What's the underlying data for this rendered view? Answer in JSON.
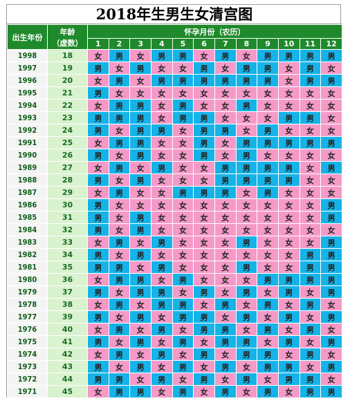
{
  "title": "2018年生男生女清宫图",
  "headers": {
    "birth_year": "出生年份",
    "age_line1": "年龄",
    "age_line2": "（虚数）",
    "month_group": "怀孕月份（农历）",
    "months": [
      "1",
      "2",
      "3",
      "4",
      "5",
      "6",
      "7",
      "8",
      "9",
      "10",
      "11",
      "12"
    ]
  },
  "colors": {
    "male": "#16b3e8",
    "female": "#f59ac8",
    "header": "#1f8a2b",
    "age_column": "#d9f2d0"
  },
  "rows": [
    {
      "year": "1998",
      "age": "18",
      "cells": [
        "女",
        "男",
        "女",
        "男",
        "男",
        "女",
        "男",
        "女",
        "男",
        "男",
        "男",
        "男"
      ]
    },
    {
      "year": "1997",
      "age": "19",
      "cells": [
        "男",
        "女",
        "男",
        "女",
        "女",
        "男",
        "女",
        "男",
        "男",
        "女",
        "男",
        "女"
      ]
    },
    {
      "year": "1996",
      "age": "20",
      "cells": [
        "女",
        "男",
        "女",
        "男",
        "男",
        "男",
        "男",
        "男",
        "男",
        "女",
        "男",
        "男"
      ]
    },
    {
      "year": "1995",
      "age": "21",
      "cells": [
        "男",
        "女",
        "女",
        "女",
        "女",
        "女",
        "女",
        "女",
        "女",
        "女",
        "女",
        "女"
      ]
    },
    {
      "year": "1994",
      "age": "22",
      "cells": [
        "女",
        "男",
        "男",
        "女",
        "男",
        "女",
        "女",
        "男",
        "女",
        "女",
        "女",
        "女"
      ]
    },
    {
      "year": "1993",
      "age": "23",
      "cells": [
        "男",
        "男",
        "男",
        "女",
        "男",
        "男",
        "女",
        "女",
        "女",
        "男",
        "男",
        "女"
      ]
    },
    {
      "year": "1992",
      "age": "24",
      "cells": [
        "男",
        "女",
        "男",
        "男",
        "女",
        "男",
        "男",
        "女",
        "男",
        "女",
        "女",
        "女"
      ]
    },
    {
      "year": "1991",
      "age": "25",
      "cells": [
        "女",
        "男",
        "男",
        "女",
        "女",
        "男",
        "女",
        "男",
        "男",
        "男",
        "男",
        "男"
      ]
    },
    {
      "year": "1990",
      "age": "26",
      "cells": [
        "男",
        "女",
        "男",
        "女",
        "女",
        "男",
        "女",
        "男",
        "女",
        "女",
        "女",
        "女"
      ]
    },
    {
      "year": "1989",
      "age": "27",
      "cells": [
        "女",
        "男",
        "女",
        "男",
        "女",
        "女",
        "男",
        "男",
        "男",
        "男",
        "女",
        "男"
      ]
    },
    {
      "year": "1988",
      "age": "28",
      "cells": [
        "男",
        "女",
        "男",
        "女",
        "女",
        "女",
        "男",
        "男",
        "男",
        "男",
        "女",
        "女"
      ]
    },
    {
      "year": "1987",
      "age": "29",
      "cells": [
        "女",
        "男",
        "女",
        "女",
        "男",
        "男",
        "男",
        "女",
        "男",
        "女",
        "女",
        "女"
      ]
    },
    {
      "year": "1986",
      "age": "30",
      "cells": [
        "男",
        "女",
        "女",
        "女",
        "女",
        "女",
        "女",
        "女",
        "女",
        "女",
        "女",
        "男"
      ]
    },
    {
      "year": "1985",
      "age": "31",
      "cells": [
        "男",
        "女",
        "男",
        "女",
        "女",
        "女",
        "女",
        "女",
        "女",
        "女",
        "女",
        "男"
      ]
    },
    {
      "year": "1984",
      "age": "32",
      "cells": [
        "男",
        "女",
        "男",
        "女",
        "女",
        "女",
        "女",
        "女",
        "女",
        "女",
        "女",
        "女"
      ]
    },
    {
      "year": "1983",
      "age": "33",
      "cells": [
        "女",
        "男",
        "女",
        "男",
        "女",
        "女",
        "女",
        "男",
        "女",
        "女",
        "女",
        "男"
      ]
    },
    {
      "year": "1982",
      "age": "34",
      "cells": [
        "男",
        "女",
        "男",
        "女",
        "女",
        "女",
        "女",
        "女",
        "女",
        "女",
        "男",
        "男"
      ]
    },
    {
      "year": "1981",
      "age": "35",
      "cells": [
        "男",
        "男",
        "女",
        "男",
        "女",
        "女",
        "女",
        "男",
        "女",
        "女",
        "男",
        "男"
      ]
    },
    {
      "year": "1980",
      "age": "36",
      "cells": [
        "女",
        "男",
        "男",
        "女",
        "男",
        "女",
        "女",
        "女",
        "男",
        "男",
        "男",
        "男"
      ]
    },
    {
      "year": "1979",
      "age": "37",
      "cells": [
        "男",
        "女",
        "男",
        "男",
        "女",
        "男",
        "女",
        "男",
        "女",
        "男",
        "女",
        "男"
      ]
    },
    {
      "year": "1978",
      "age": "38",
      "cells": [
        "女",
        "男",
        "女",
        "男",
        "男",
        "女",
        "男",
        "女",
        "男",
        "女",
        "男",
        "女"
      ]
    },
    {
      "year": "1977",
      "age": "39",
      "cells": [
        "男",
        "女",
        "男",
        "女",
        "男",
        "男",
        "女",
        "男",
        "女",
        "男",
        "女",
        "男"
      ]
    },
    {
      "year": "1976",
      "age": "40",
      "cells": [
        "女",
        "男",
        "女",
        "男",
        "女",
        "男",
        "男",
        "女",
        "男",
        "女",
        "男",
        "女"
      ]
    },
    {
      "year": "1975",
      "age": "41",
      "cells": [
        "男",
        "女",
        "男",
        "女",
        "男",
        "女",
        "男",
        "男",
        "女",
        "男",
        "女",
        "男"
      ]
    },
    {
      "year": "1974",
      "age": "42",
      "cells": [
        "女",
        "男",
        "女",
        "男",
        "女",
        "男",
        "女",
        "男",
        "男",
        "女",
        "男",
        "女"
      ]
    },
    {
      "year": "1973",
      "age": "43",
      "cells": [
        "男",
        "女",
        "男",
        "女",
        "男",
        "女",
        "男",
        "女",
        "男",
        "男",
        "女",
        "男"
      ]
    },
    {
      "year": "1972",
      "age": "44",
      "cells": [
        "男",
        "男",
        "女",
        "男",
        "女",
        "男",
        "女",
        "男",
        "女",
        "男",
        "男",
        "女"
      ]
    },
    {
      "year": "1971",
      "age": "45",
      "cells": [
        "女",
        "男",
        "男",
        "女",
        "男",
        "女",
        "男",
        "女",
        "男",
        "女",
        "男",
        "男"
      ]
    }
  ]
}
